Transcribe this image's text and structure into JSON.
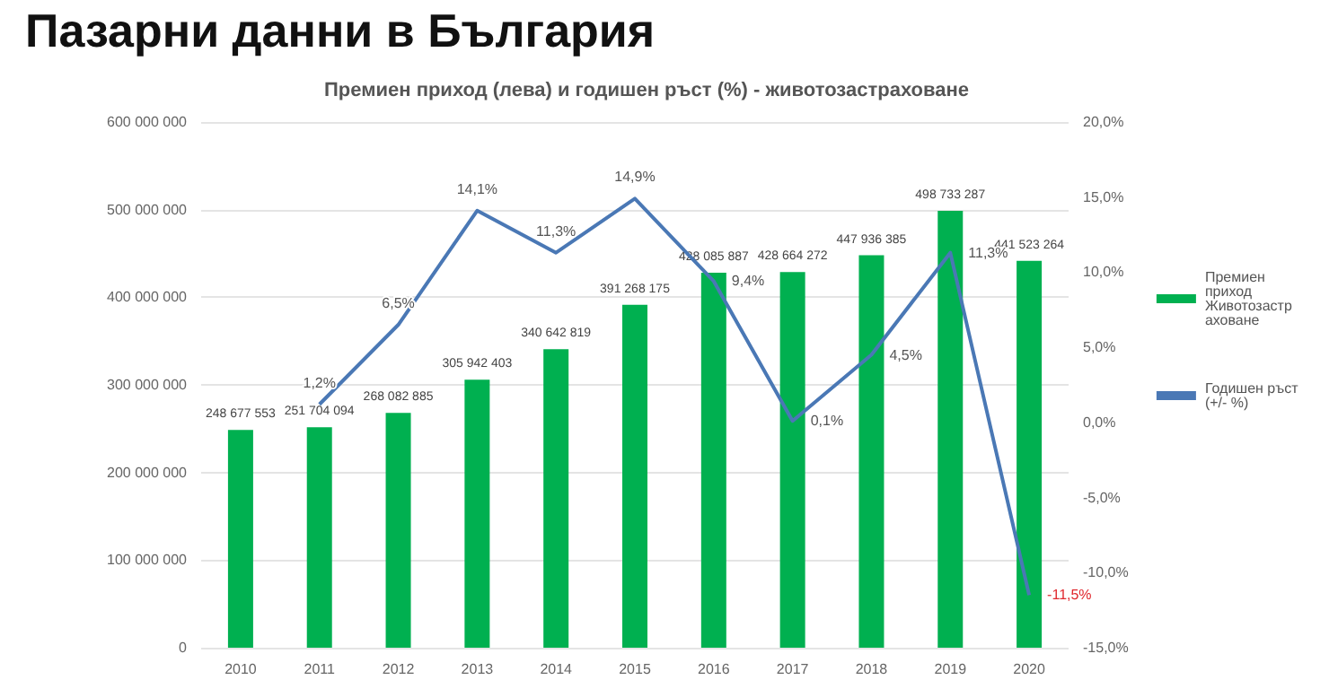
{
  "chart_data": {
    "type": "bar",
    "title": "Пазарни данни в България",
    "subtitle": "Премиен приход (лева) и годишен ръст (%) - животозастраховане",
    "categories": [
      "2010",
      "2011",
      "2012",
      "2013",
      "2014",
      "2015",
      "2016",
      "2017",
      "2018",
      "2019",
      "2020"
    ],
    "series": [
      {
        "name": "Премиен приход Животозастраховане",
        "color": "#00b050",
        "values": [
          248677553,
          251704094,
          268082885,
          305942403,
          340642819,
          391268175,
          428085887,
          428664272,
          447936385,
          498733287,
          441523264
        ],
        "value_labels": [
          "248 677 553",
          "251 704 094",
          "268 082 885",
          "305 942 403",
          "340 642 819",
          "391 268 175",
          "428 085 887",
          "428 664 272",
          "447 936 385",
          "498 733 287",
          "441 523 264"
        ]
      },
      {
        "name": "Годишен ръст (+/- %)",
        "type": "line",
        "axis": "y2",
        "color": "#4a78b5",
        "values": [
          null,
          1.2,
          6.5,
          14.1,
          11.3,
          14.9,
          9.4,
          0.1,
          4.5,
          11.3,
          -11.5
        ],
        "value_labels": [
          null,
          "1,2%",
          "6,5%",
          "14,1%",
          "11,3%",
          "14,9%",
          "9,4%",
          "0,1%",
          "4,5%",
          "11,3%",
          "-11,5%"
        ]
      }
    ],
    "ylim": [
      0,
      600000000
    ],
    "yticks": [
      {
        "value": 0,
        "label": "0"
      },
      {
        "value": 100000000,
        "label": "100 000 000"
      },
      {
        "value": 200000000,
        "label": "200 000 000"
      },
      {
        "value": 300000000,
        "label": "300 000 000"
      },
      {
        "value": 400000000,
        "label": "400 000 000"
      },
      {
        "value": 500000000,
        "label": "500 000 000"
      },
      {
        "value": 600000000,
        "label": "600 000 000"
      }
    ],
    "y2lim": [
      -15,
      20
    ],
    "y2ticks": [
      {
        "value": -15,
        "label": "-15,0%"
      },
      {
        "value": -10,
        "label": "-10,0%"
      },
      {
        "value": -5,
        "label": "-5,0%"
      },
      {
        "value": 0,
        "label": "0,0%"
      },
      {
        "value": 5,
        "label": "5,0%"
      },
      {
        "value": 10,
        "label": "10,0%"
      },
      {
        "value": 15,
        "label": "15,0%"
      },
      {
        "value": 20,
        "label": "20,0%"
      }
    ],
    "grid": "y",
    "legend": "right",
    "marker": "none",
    "line_style": "solid"
  }
}
